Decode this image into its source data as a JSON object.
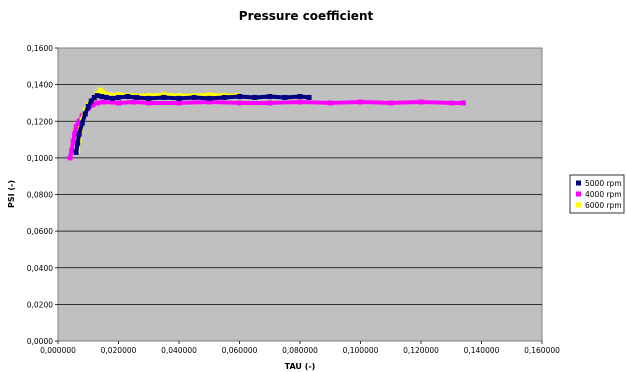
{
  "chart_data": {
    "type": "scatter",
    "title": "Pressure coefficient",
    "xlabel": "TAU (-)",
    "ylabel": "PSI (-)",
    "xlim": [
      0,
      0.16
    ],
    "ylim": [
      0,
      0.16
    ],
    "x_ticks": [
      "0,000000",
      "0,020000",
      "0,040000",
      "0,060000",
      "0,080000",
      "0,100000",
      "0,120000",
      "0,140000",
      "0,160000"
    ],
    "y_ticks": [
      "0,0000",
      "0,0200",
      "0,0400",
      "0,0600",
      "0,0800",
      "0,1000",
      "0,1200",
      "0,1400",
      "0,1600"
    ],
    "grid": "horizontal",
    "legend_position": "right",
    "plot_background": "#c0c0c0",
    "series": [
      {
        "name": "5000 rpm",
        "color": "#000080",
        "points": [
          [
            0.006,
            0.103
          ],
          [
            0.0065,
            0.108
          ],
          [
            0.007,
            0.113
          ],
          [
            0.008,
            0.119
          ],
          [
            0.009,
            0.124
          ],
          [
            0.01,
            0.128
          ],
          [
            0.011,
            0.131
          ],
          [
            0.012,
            0.133
          ],
          [
            0.013,
            0.134
          ],
          [
            0.0145,
            0.1335
          ],
          [
            0.016,
            0.133
          ],
          [
            0.018,
            0.1325
          ],
          [
            0.02,
            0.133
          ],
          [
            0.023,
            0.1335
          ],
          [
            0.026,
            0.133
          ],
          [
            0.03,
            0.1325
          ],
          [
            0.035,
            0.133
          ],
          [
            0.04,
            0.1325
          ],
          [
            0.045,
            0.133
          ],
          [
            0.05,
            0.1325
          ],
          [
            0.055,
            0.133
          ],
          [
            0.06,
            0.1335
          ],
          [
            0.065,
            0.133
          ],
          [
            0.07,
            0.1335
          ],
          [
            0.075,
            0.133
          ],
          [
            0.08,
            0.1335
          ],
          [
            0.083,
            0.133
          ]
        ]
      },
      {
        "name": "4000 rpm",
        "color": "#ff00ff",
        "points": [
          [
            0.004,
            0.1
          ],
          [
            0.0045,
            0.104
          ],
          [
            0.005,
            0.109
          ],
          [
            0.0055,
            0.113
          ],
          [
            0.006,
            0.117
          ],
          [
            0.007,
            0.12
          ],
          [
            0.008,
            0.123
          ],
          [
            0.009,
            0.125
          ],
          [
            0.01,
            0.127
          ],
          [
            0.0115,
            0.129
          ],
          [
            0.013,
            0.13
          ],
          [
            0.015,
            0.1305
          ],
          [
            0.02,
            0.13
          ],
          [
            0.025,
            0.1305
          ],
          [
            0.03,
            0.13
          ],
          [
            0.04,
            0.13
          ],
          [
            0.05,
            0.1305
          ],
          [
            0.06,
            0.13
          ],
          [
            0.07,
            0.13
          ],
          [
            0.08,
            0.1305
          ],
          [
            0.09,
            0.13
          ],
          [
            0.1,
            0.1305
          ],
          [
            0.11,
            0.13
          ],
          [
            0.12,
            0.1305
          ],
          [
            0.13,
            0.13
          ],
          [
            0.134,
            0.13
          ]
        ]
      },
      {
        "name": "6000 rpm",
        "color": "#ffff00",
        "points": [
          [
            0.0065,
            0.104
          ],
          [
            0.007,
            0.11
          ],
          [
            0.0075,
            0.116
          ],
          [
            0.008,
            0.121
          ],
          [
            0.009,
            0.126
          ],
          [
            0.01,
            0.129
          ],
          [
            0.011,
            0.131
          ],
          [
            0.012,
            0.133
          ],
          [
            0.013,
            0.135
          ],
          [
            0.014,
            0.137
          ],
          [
            0.015,
            0.1355
          ],
          [
            0.017,
            0.1345
          ],
          [
            0.02,
            0.1345
          ],
          [
            0.025,
            0.134
          ],
          [
            0.03,
            0.134
          ],
          [
            0.035,
            0.1345
          ],
          [
            0.04,
            0.134
          ],
          [
            0.045,
            0.134
          ],
          [
            0.05,
            0.1345
          ],
          [
            0.055,
            0.134
          ],
          [
            0.059,
            0.134
          ]
        ]
      }
    ]
  }
}
